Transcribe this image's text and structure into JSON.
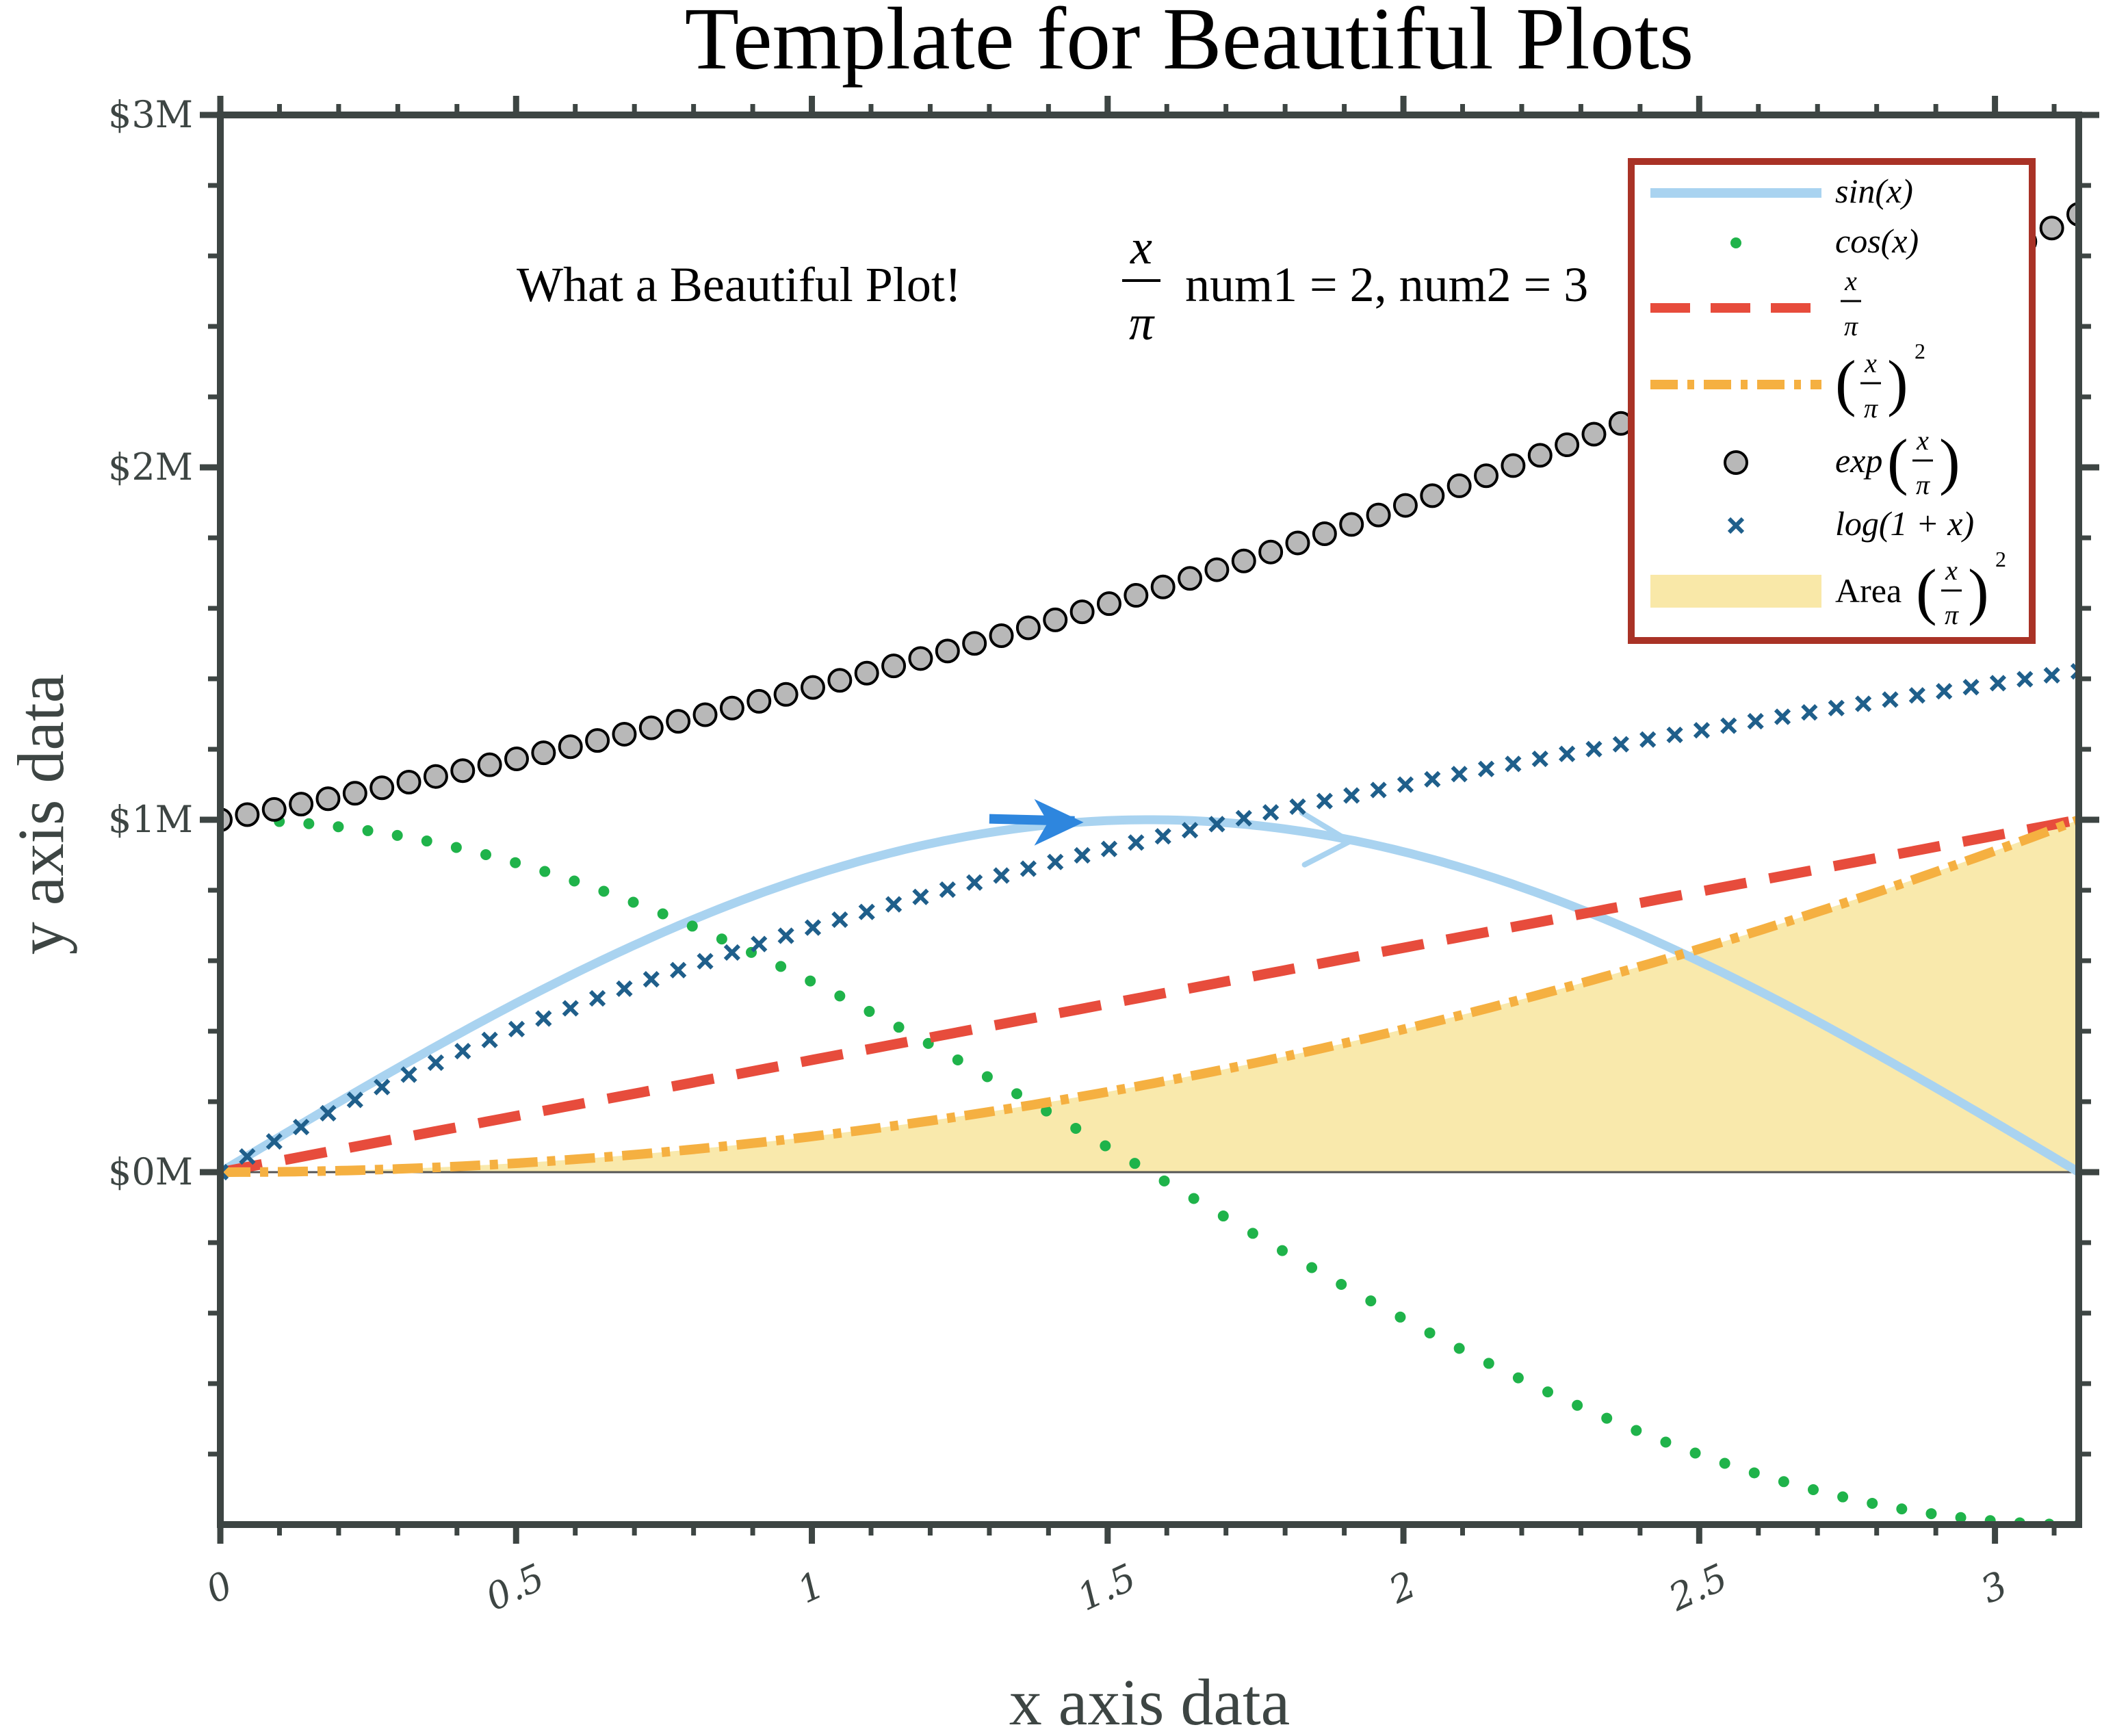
{
  "chart_data": {
    "type": "line",
    "title": "Template for Beautiful Plots",
    "xlabel": "x axis data",
    "ylabel": "y axis data",
    "xlim": [
      0,
      3.14159
    ],
    "ylim": [
      -1,
      3
    ],
    "x_ticks": [
      0,
      0.5,
      1,
      1.5,
      2,
      2.5,
      3
    ],
    "x_tick_labels": [
      "0",
      "0.5",
      "1",
      "1.5",
      "2",
      "2.5",
      "3"
    ],
    "y_ticks": [
      0,
      1,
      2,
      3
    ],
    "y_tick_labels": [
      "$0M",
      "$1M",
      "$2M",
      "$3M"
    ],
    "annotation": {
      "prefix": "What a Beautiful Plot!",
      "frac_num": "x",
      "frac_den": "π",
      "suffix": "num1 = 2, num2 = 3"
    },
    "legend_placement": "top-right",
    "grid": false,
    "series": [
      {
        "name": "sin(x)",
        "function": "sin(x)",
        "style": "solid-line",
        "color": "#a9d3f0"
      },
      {
        "name": "cos(x)",
        "function": "cos(x)",
        "style": "dots",
        "color": "#1fb34a"
      },
      {
        "name": "x/π",
        "function": "x/pi",
        "style": "dashed-line",
        "color": "#e74c3c"
      },
      {
        "name": "(x/π)^2",
        "function": "(x/pi)^2",
        "style": "dash-dot-line",
        "color": "#f5b041"
      },
      {
        "name": "exp(x/π)",
        "function": "exp(x/pi)",
        "style": "circle-markers",
        "color": "#b8b8b8"
      },
      {
        "name": "log(1+x)",
        "function": "log(1+x)",
        "style": "x-markers",
        "color": "#1f5f8b"
      },
      {
        "name": "Area (x/π)^2",
        "function": "area under (x/pi)^2",
        "style": "filled-area",
        "color": "#f9e8a8"
      }
    ],
    "legend_labels": {
      "sin": "sin(x)",
      "cos": "cos(x)",
      "lin_num": "x",
      "lin_den": "π",
      "sq_num": "x",
      "sq_den": "π",
      "sq_exp": "2",
      "exp_pre": "exp",
      "exp_num": "x",
      "exp_den": "π",
      "log": "log(1 + x)",
      "area_pre": "Area",
      "area_num": "x",
      "area_den": "π",
      "area_exp": "2"
    },
    "colors": {
      "axis": "#3d4543",
      "legend_border": "#a93226",
      "arrow_dark": "#2e86de"
    }
  }
}
